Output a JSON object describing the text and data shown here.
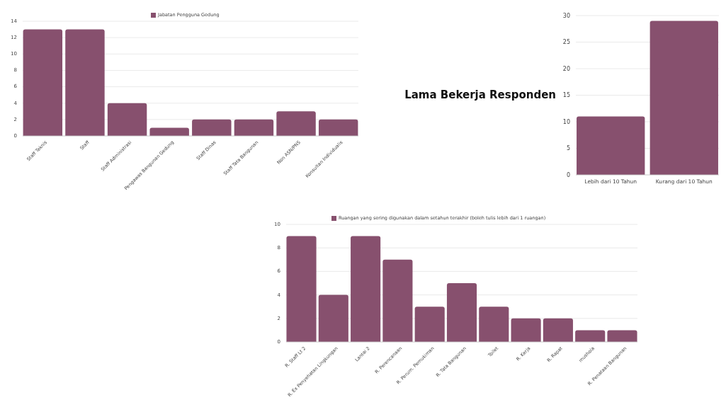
{
  "chart_data": [
    {
      "type": "bar",
      "categories": [
        "Staff Teknis",
        "Staff",
        "Staff Administrasi",
        "Pengawas Bangunan Gedung",
        "Staff Dinas",
        "Staff Tata Bangunan",
        "Non ASN/PNS",
        "Konsultan Individualis"
      ],
      "series": [
        {
          "name": "Jabatan Pengguna Gedung",
          "color": "#87506e",
          "values": [
            13,
            13,
            4,
            1,
            2,
            2,
            3,
            2
          ]
        }
      ],
      "ylim": [
        0,
        14
      ],
      "yticks": [
        0,
        2,
        4,
        6,
        8,
        10,
        12,
        14
      ],
      "grid": "y",
      "legend": "top"
    },
    {
      "type": "bar",
      "title": "Lama Bekerja Responden",
      "categories": [
        "Lebih dari 10 Tahun",
        "Kurang dari 10 Tahun"
      ],
      "series": [
        {
          "color": "#87506e",
          "values": [
            11,
            29
          ]
        }
      ],
      "ylim": [
        0,
        30
      ],
      "yticks": [
        0,
        5,
        10,
        15,
        20,
        25,
        30
      ],
      "grid": "y"
    },
    {
      "type": "bar",
      "categories": [
        "R. Staff Lt 2",
        "R. Ex Penyehatan Lingkungan",
        "Lantai 2",
        "R. Perencanaan",
        "R. Perum. Pemukiman",
        "R. Tata Bangunan",
        "Toilet",
        "R. Kerja",
        "R. Rapat",
        "mushola",
        "R. Penataan Bangunan"
      ],
      "series": [
        {
          "name": "Ruangan yang sering digunakan dalam setahun terakhir (boleh tulis lebih dari 1 ruangan)",
          "color": "#87506e",
          "values": [
            9,
            4,
            9,
            7,
            3,
            5,
            3,
            2,
            2,
            1,
            1
          ]
        }
      ],
      "ylim": [
        0,
        10
      ],
      "yticks": [
        0,
        2,
        4,
        6,
        8,
        10
      ],
      "grid": "y",
      "legend": "top"
    }
  ]
}
